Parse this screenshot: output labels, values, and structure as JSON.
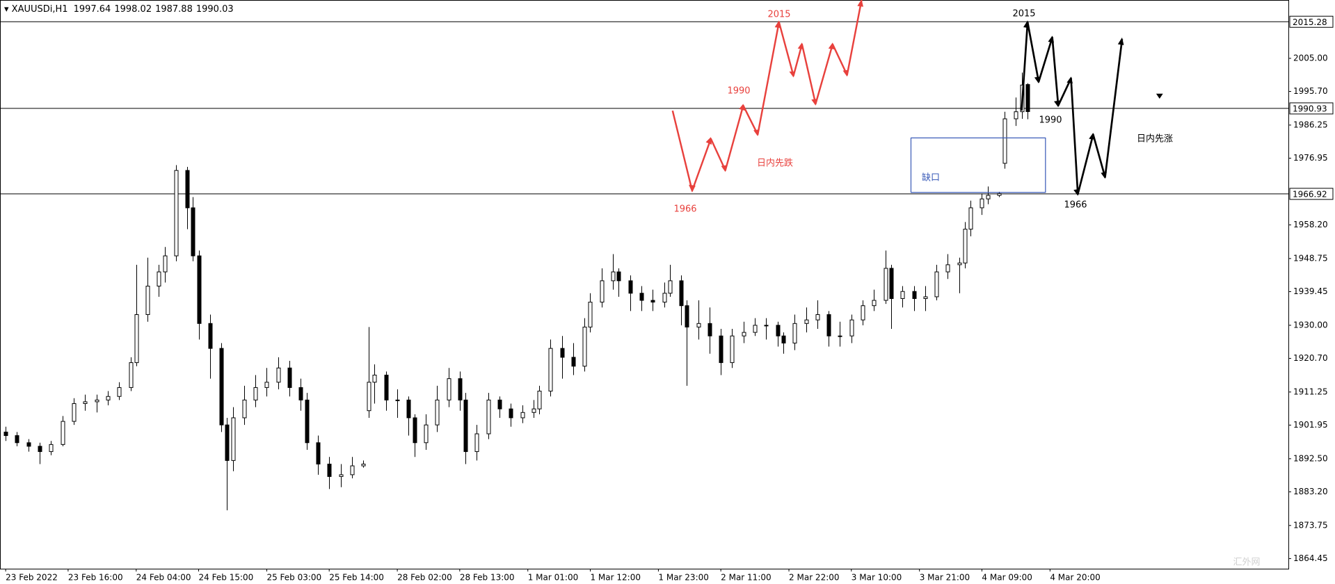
{
  "chart_data": {
    "type": "candlestick",
    "title": "XAUUSDi,H1",
    "up_color": "#ffffff",
    "down_color": "#000000",
    "line_color": "#000000",
    "x": [
      0,
      2,
      4,
      6,
      8,
      10,
      12,
      14,
      16,
      18,
      20,
      22,
      23,
      25,
      27,
      28,
      30,
      32,
      33,
      34,
      36,
      38,
      39,
      40,
      42,
      44,
      46,
      48,
      50,
      52,
      53,
      55,
      57,
      59,
      61,
      63,
      64,
      65,
      67,
      69,
      71,
      72,
      74,
      76,
      78,
      80,
      81,
      83,
      85,
      87,
      89,
      91,
      93,
      94,
      96,
      98,
      100,
      102,
      103,
      105,
      107,
      108,
      110,
      112,
      114,
      116,
      117,
      119,
      120,
      122,
      124,
      126,
      128,
      130,
      132,
      134,
      136,
      137,
      139,
      141,
      143,
      145,
      147,
      149,
      151,
      153,
      155,
      156,
      158,
      160,
      162,
      164,
      166,
      168,
      169,
      170,
      172,
      173,
      175,
      176,
      178,
      179,
      180
    ],
    "ohlc": [
      [
        1900,
        1901.5,
        1897.5,
        1899
      ],
      [
        1899,
        1900,
        1896,
        1897
      ],
      [
        1897,
        1898,
        1894.5,
        1896
      ],
      [
        1896,
        1897,
        1891,
        1894.5
      ],
      [
        1894.5,
        1897.5,
        1893.5,
        1896.5
      ],
      [
        1896.5,
        1904.5,
        1896,
        1903
      ],
      [
        1903,
        1909.5,
        1902,
        1908
      ],
      [
        1908,
        1910.5,
        1906,
        1908.5
      ],
      [
        1908.5,
        1910.5,
        1905.5,
        1909
      ],
      [
        1909,
        1911.5,
        1907.5,
        1910
      ],
      [
        1910,
        1914,
        1909,
        1912.5
      ],
      [
        1912.5,
        1921,
        1911.5,
        1919.5
      ],
      [
        1919.5,
        1947,
        1918.5,
        1933
      ],
      [
        1933,
        1949,
        1931,
        1941
      ],
      [
        1941,
        1947,
        1938,
        1945
      ],
      [
        1945,
        1952,
        1942,
        1949.5
      ],
      [
        1949.5,
        1975,
        1948,
        1973.5
      ],
      [
        1973.5,
        1974.5,
        1957,
        1963
      ],
      [
        1963,
        1966,
        1948,
        1949.5
      ],
      [
        1949.5,
        1951,
        1926,
        1930.5
      ],
      [
        1930.5,
        1933,
        1915,
        1923.5
      ],
      [
        1923.5,
        1925,
        1900,
        1902
      ],
      [
        1902,
        1904,
        1878,
        1892
      ],
      [
        1892,
        1907,
        1889,
        1904
      ],
      [
        1904,
        1913,
        1902,
        1909
      ],
      [
        1909,
        1916,
        1907,
        1912.5
      ],
      [
        1912.5,
        1918,
        1910,
        1914
      ],
      [
        1914,
        1921,
        1912,
        1918
      ],
      [
        1918,
        1920,
        1910,
        1912.5
      ],
      [
        1912.5,
        1915,
        1906,
        1909
      ],
      [
        1909,
        1911,
        1895,
        1897
      ],
      [
        1897,
        1899,
        1888,
        1891
      ],
      [
        1891,
        1893,
        1884,
        1887.5
      ],
      [
        1887.5,
        1891,
        1884.5,
        1888
      ],
      [
        1888,
        1893,
        1887,
        1890.5
      ],
      [
        1890.5,
        1892,
        1890,
        1891
      ],
      [
        1906,
        1929.5,
        1904,
        1914
      ],
      [
        1914,
        1919,
        1908,
        1916
      ],
      [
        1916,
        1917,
        1906,
        1909
      ],
      [
        1909,
        1912,
        1904,
        1909
      ],
      [
        1909,
        1910,
        1899,
        1904
      ],
      [
        1904,
        1905,
        1893,
        1897
      ],
      [
        1897,
        1905,
        1895,
        1902
      ],
      [
        1902,
        1913,
        1900,
        1909
      ],
      [
        1909,
        1918,
        1907,
        1915
      ],
      [
        1915,
        1917,
        1906,
        1909
      ],
      [
        1909,
        1911,
        1891,
        1894.5
      ],
      [
        1894.5,
        1902,
        1892,
        1899.5
      ],
      [
        1899.5,
        1911,
        1898,
        1909
      ],
      [
        1909,
        1910,
        1904,
        1906.5
      ],
      [
        1906.5,
        1908,
        1901.5,
        1904
      ],
      [
        1904,
        1907.5,
        1902.5,
        1905.5
      ],
      [
        1905.5,
        1909,
        1904,
        1906.5
      ],
      [
        1906.5,
        1913,
        1905,
        1911.5
      ],
      [
        1911.5,
        1926,
        1910,
        1923.5
      ],
      [
        1923.5,
        1927,
        1915,
        1921
      ],
      [
        1921,
        1925,
        1916,
        1918.5
      ],
      [
        1918.5,
        1932,
        1917,
        1929.5
      ],
      [
        1929.5,
        1939,
        1928,
        1936.5
      ],
      [
        1936.5,
        1946,
        1935,
        1942.5
      ],
      [
        1942.5,
        1950,
        1940,
        1945
      ],
      [
        1945,
        1946,
        1938,
        1942.5
      ],
      [
        1942.5,
        1944,
        1934,
        1939
      ],
      [
        1939,
        1941,
        1934,
        1937
      ],
      [
        1937,
        1940,
        1934,
        1936.5
      ],
      [
        1936.5,
        1942,
        1935,
        1939
      ],
      [
        1939,
        1947,
        1938,
        1942.5
      ],
      [
        1942.5,
        1944,
        1930,
        1935.5
      ],
      [
        1935.5,
        1937,
        1913,
        1929.5
      ],
      [
        1929.5,
        1937,
        1926,
        1930.5
      ],
      [
        1930.5,
        1935,
        1922,
        1927
      ],
      [
        1927,
        1929,
        1916,
        1919.5
      ],
      [
        1919.5,
        1929,
        1918,
        1927
      ],
      [
        1927,
        1931,
        1925,
        1928
      ],
      [
        1928,
        1932,
        1927,
        1930
      ],
      [
        1930,
        1932,
        1926,
        1930
      ],
      [
        1930,
        1931,
        1924,
        1927
      ],
      [
        1927,
        1928,
        1922,
        1925
      ],
      [
        1925,
        1933,
        1923,
        1930.5
      ],
      [
        1930.5,
        1935,
        1928,
        1931.5
      ],
      [
        1931.5,
        1937,
        1929,
        1933
      ],
      [
        1933,
        1934,
        1924,
        1927
      ],
      [
        1927,
        1931,
        1924,
        1927
      ],
      [
        1927,
        1933,
        1925,
        1931.5
      ],
      [
        1931.5,
        1937,
        1930,
        1935.5
      ],
      [
        1935.5,
        1940,
        1934,
        1937
      ],
      [
        1937,
        1951,
        1936,
        1946
      ],
      [
        1946,
        1947,
        1929,
        1937.5
      ],
      [
        1937.5,
        1941,
        1935,
        1939.5
      ],
      [
        1939.5,
        1941,
        1934,
        1937.5
      ],
      [
        1937.5,
        1941,
        1934,
        1938
      ],
      [
        1938,
        1947,
        1937,
        1945
      ],
      [
        1945,
        1950,
        1943,
        1947
      ],
      [
        1947,
        1949,
        1939,
        1947.5
      ],
      [
        1947.5,
        1959,
        1946,
        1957
      ],
      [
        1957,
        1965,
        1955,
        1963
      ],
      [
        1963,
        1967,
        1961,
        1965.5
      ],
      [
        1965.5,
        1969,
        1964,
        1966.5
      ],
      [
        1966.5,
        1967.5,
        1966,
        1967
      ],
      [
        1975.5,
        1990,
        1974,
        1988
      ],
      [
        1988,
        1994,
        1986,
        1990
      ],
      [
        1990,
        2001,
        1988,
        1997.5
      ],
      [
        1997.64,
        1998.02,
        1987.88,
        1990.03
      ]
    ],
    "xlim": [
      -1,
      226
    ],
    "ylim": [
      1861.6,
      2021.0
    ],
    "xticks": [
      {
        "value": 0,
        "label": "23 Feb 2022"
      },
      {
        "value": 11,
        "label": "23 Feb 16:00"
      },
      {
        "value": 23,
        "label": "24 Feb 04:00"
      },
      {
        "value": 34,
        "label": "24 Feb 15:00"
      },
      {
        "value": 46,
        "label": "25 Feb 03:00"
      },
      {
        "value": 57,
        "label": "25 Feb 14:00"
      },
      {
        "value": 69,
        "label": "28 Feb 02:00"
      },
      {
        "value": 80,
        "label": "28 Feb 13:00"
      },
      {
        "value": 92,
        "label": "1 Mar 01:00"
      },
      {
        "value": 103,
        "label": "1 Mar 12:00"
      },
      {
        "value": 115,
        "label": "1 Mar 23:00"
      },
      {
        "value": 126,
        "label": "2 Mar 11:00"
      },
      {
        "value": 138,
        "label": "2 Mar 22:00"
      },
      {
        "value": 149,
        "label": "3 Mar 10:00"
      },
      {
        "value": 161,
        "label": "3 Mar 21:00"
      },
      {
        "value": 172,
        "label": "4 Mar 09:00"
      },
      {
        "value": 184,
        "label": "4 Mar 20:00"
      }
    ],
    "yticks": [
      {
        "value": 2005,
        "label": "2005.00"
      },
      {
        "value": 1995.7,
        "label": "1995.70"
      },
      {
        "value": 1986.25,
        "label": "1986.25"
      },
      {
        "value": 1976.95,
        "label": "1976.95"
      },
      {
        "value": 1958.2,
        "label": "1958.20"
      },
      {
        "value": 1948.75,
        "label": "1948.75"
      },
      {
        "value": 1939.45,
        "label": "1939.45"
      },
      {
        "value": 1930,
        "label": "1930.00"
      },
      {
        "value": 1920.7,
        "label": "1920.70"
      },
      {
        "value": 1911.25,
        "label": "1911.25"
      },
      {
        "value": 1901.95,
        "label": "1901.95"
      },
      {
        "value": 1892.5,
        "label": "1892.50"
      },
      {
        "value": 1883.2,
        "label": "1883.20"
      },
      {
        "value": 1873.75,
        "label": "1873.75"
      },
      {
        "value": 1864.45,
        "label": "1864.45"
      }
    ],
    "levels": [
      2015.28,
      1990.93,
      1966.92
    ],
    "annotations": {
      "red": [
        "2015",
        "1990",
        "1966",
        "日内先跌"
      ],
      "black": [
        "2015",
        "1990",
        "1966",
        "日内先涨"
      ],
      "gap": "缺口"
    },
    "watermark": "汇外网"
  }
}
